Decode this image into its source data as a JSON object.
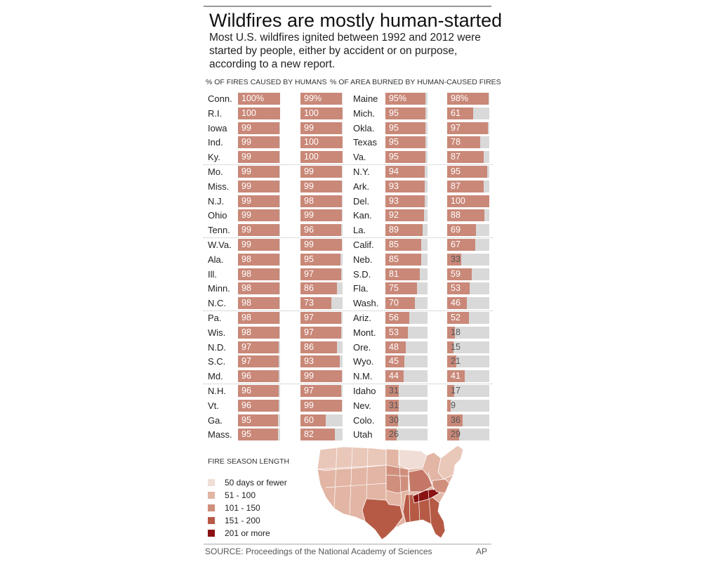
{
  "title": "Wildfires are mostly human-started",
  "subtitle": "Most U.S. wildfires ignited between 1992 and 2012 were started by people, either by accident or on purpose, according to a new report.",
  "headers": {
    "col1": "% OF FIRES CAUSED BY HUMANS",
    "col2": "% OF AREA BURNED  BY HUMAN-CAUSED FIRES"
  },
  "chart_data": {
    "type": "bar",
    "title": "Wildfires are mostly human-started",
    "series": [
      {
        "name": "% of fires caused by humans"
      },
      {
        "name": "% of area burned by human-caused fires"
      }
    ],
    "ylim": [
      0,
      100
    ],
    "left": [
      {
        "state": "Conn.",
        "fires": "100%",
        "area": "99%"
      },
      {
        "state": "R.I.",
        "fires": "100",
        "area": "100"
      },
      {
        "state": "Iowa",
        "fires": "99",
        "area": "99"
      },
      {
        "state": "Ind.",
        "fires": "99",
        "area": "100"
      },
      {
        "state": "Ky.",
        "fires": "99",
        "area": "100"
      },
      {
        "state": "Mo.",
        "fires": "99",
        "area": "99"
      },
      {
        "state": "Miss.",
        "fires": "99",
        "area": "99"
      },
      {
        "state": "N.J.",
        "fires": "99",
        "area": "98"
      },
      {
        "state": "Ohio",
        "fires": "99",
        "area": "99"
      },
      {
        "state": "Tenn.",
        "fires": "99",
        "area": "96"
      },
      {
        "state": "W.Va.",
        "fires": "99",
        "area": "99"
      },
      {
        "state": "Ala.",
        "fires": "98",
        "area": "95"
      },
      {
        "state": "Ill.",
        "fires": "98",
        "area": "97"
      },
      {
        "state": "Minn.",
        "fires": "98",
        "area": "86"
      },
      {
        "state": "N.C.",
        "fires": "98",
        "area": "73"
      },
      {
        "state": "Pa.",
        "fires": "98",
        "area": "97"
      },
      {
        "state": "Wis.",
        "fires": "98",
        "area": "97"
      },
      {
        "state": "N.D.",
        "fires": "97",
        "area": "86"
      },
      {
        "state": "S.C.",
        "fires": "97",
        "area": "93"
      },
      {
        "state": "Md.",
        "fires": "96",
        "area": "99"
      },
      {
        "state": "N.H.",
        "fires": "96",
        "area": "97"
      },
      {
        "state": "Vt.",
        "fires": "96",
        "area": "99"
      },
      {
        "state": "Ga.",
        "fires": "95",
        "area": "60"
      },
      {
        "state": "Mass.",
        "fires": "95",
        "area": "82"
      }
    ],
    "right": [
      {
        "state": "Maine",
        "fires": "95%",
        "area": "98%"
      },
      {
        "state": "Mich.",
        "fires": "95",
        "area": "61"
      },
      {
        "state": "Okla.",
        "fires": "95",
        "area": "97"
      },
      {
        "state": "Texas",
        "fires": "95",
        "area": "78"
      },
      {
        "state": "Va.",
        "fires": "95",
        "area": "87"
      },
      {
        "state": "N.Y.",
        "fires": "94",
        "area": "95"
      },
      {
        "state": "Ark.",
        "fires": "93",
        "area": "87"
      },
      {
        "state": "Del.",
        "fires": "93",
        "area": "100"
      },
      {
        "state": "Kan.",
        "fires": "92",
        "area": "88"
      },
      {
        "state": "La.",
        "fires": "89",
        "area": "69"
      },
      {
        "state": "Calif.",
        "fires": "85",
        "area": "67"
      },
      {
        "state": "Neb.",
        "fires": "85",
        "area": "33"
      },
      {
        "state": "S.D.",
        "fires": "81",
        "area": "59"
      },
      {
        "state": "Fla.",
        "fires": "75",
        "area": "53"
      },
      {
        "state": "Wash.",
        "fires": "70",
        "area": "46"
      },
      {
        "state": "Ariz.",
        "fires": "56",
        "area": "52"
      },
      {
        "state": "Mont.",
        "fires": "53",
        "area": "18"
      },
      {
        "state": "Ore.",
        "fires": "48",
        "area": "15"
      },
      {
        "state": "Wyo.",
        "fires": "45",
        "area": "21"
      },
      {
        "state": "N.M.",
        "fires": "44",
        "area": "41"
      },
      {
        "state": "Idaho",
        "fires": "31",
        "area": "17"
      },
      {
        "state": "Nev.",
        "fires": "31",
        "area": "9"
      },
      {
        "state": "Colo.",
        "fires": "30",
        "area": "36"
      },
      {
        "state": "Utah",
        "fires": "26",
        "area": "29"
      }
    ]
  },
  "legend": {
    "title": "FIRE SEASON LENGTH",
    "items": [
      {
        "label": "50 days or fewer",
        "color": "#f0ddd5"
      },
      {
        "label": "51 - 100",
        "color": "#e2b5a4"
      },
      {
        "label": "101 - 150",
        "color": "#d08f7c"
      },
      {
        "label": "151 - 200",
        "color": "#b65a45"
      },
      {
        "label": "201 or more",
        "color": "#8a1212"
      }
    ]
  },
  "colors": {
    "bar": "#c98878",
    "track": "#d9d9d9",
    "map_border": "#ffffff"
  },
  "source": "SOURCE: Proceedings of the National Academy of Sciences",
  "credit": "AP"
}
